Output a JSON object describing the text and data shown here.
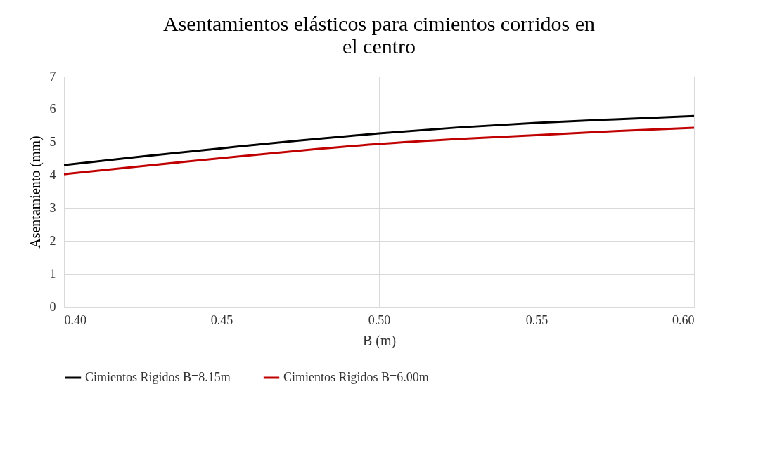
{
  "chart_data": {
    "type": "line",
    "title": "Asentamientos elásticos para cimientos corridos en el centro",
    "xlabel": "B (m)",
    "ylabel": "Asentamiento (mm)",
    "x": [
      0.4,
      0.425,
      0.45,
      0.475,
      0.5,
      0.525,
      0.55,
      0.575,
      0.6
    ],
    "series": [
      {
        "name": "Cimientos Rigidos B=8.15m",
        "color": "#000000",
        "values": [
          4.31,
          4.57,
          4.82,
          5.06,
          5.27,
          5.45,
          5.59,
          5.7,
          5.8
        ]
      },
      {
        "name": "Cimientos Rigidos B=6.00m",
        "color": "#c00000",
        "values": [
          4.03,
          4.28,
          4.52,
          4.75,
          4.95,
          5.1,
          5.22,
          5.34,
          5.44
        ]
      }
    ],
    "xlim": [
      0.4,
      0.6
    ],
    "xticks": [
      {
        "value": 0.4,
        "label": "0.40"
      },
      {
        "value": 0.45,
        "label": "0.45"
      },
      {
        "value": 0.5,
        "label": "0.50"
      },
      {
        "value": 0.55,
        "label": "0.55"
      },
      {
        "value": 0.6,
        "label": "0.60"
      }
    ],
    "ylim": [
      0,
      7
    ],
    "yticks": [
      0,
      1,
      2,
      3,
      4,
      5,
      6,
      7
    ],
    "grid": true,
    "legend": "bottom",
    "marker": "none",
    "line_style": "solid"
  }
}
